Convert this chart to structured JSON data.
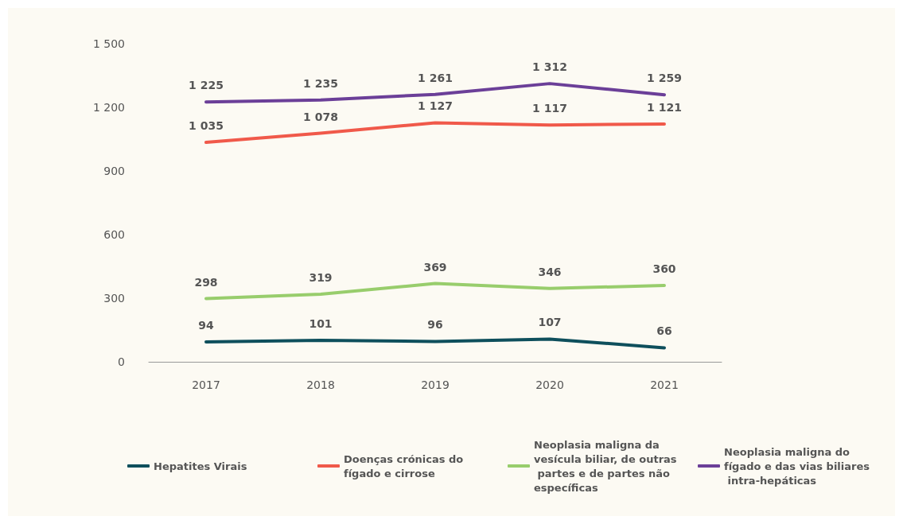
{
  "chart_data": {
    "type": "line",
    "categories": [
      "2017",
      "2018",
      "2019",
      "2020",
      "2021"
    ],
    "ylim": [
      0,
      1500
    ],
    "yticks": [
      0,
      300,
      600,
      900,
      {
        "value": 1200,
        "label": "1 200"
      },
      {
        "value": 1500,
        "label": "1 500"
      }
    ],
    "grid": false,
    "legend": "bottom",
    "marker": "none",
    "line_style": "solid",
    "series": [
      {
        "name": "Hepatites Virais",
        "color": "#0e4f5c",
        "values": [
          94,
          101,
          96,
          107,
          66
        ],
        "value_labels": [
          "94",
          "101",
          "96",
          "107",
          "66"
        ]
      },
      {
        "name": "Doenças crónicas do fígado e cirrose",
        "color": "#f0594a",
        "values": [
          1035,
          1078,
          1127,
          1117,
          1121
        ],
        "value_labels": [
          "1 035",
          "1 078",
          "1 127",
          "1 117",
          "1 121"
        ]
      },
      {
        "name": "Neoplasia maligna da vesícula biliar, de outras partes e de partes não específicas",
        "color": "#98cd6c",
        "values": [
          298,
          319,
          369,
          346,
          360
        ],
        "value_labels": [
          "298",
          "319",
          "369",
          "346",
          "360"
        ]
      },
      {
        "name": "Neoplasia maligna do fígado e das vias biliares intra-hepáticas",
        "color": "#6b3f98",
        "values": [
          1225,
          1235,
          1261,
          1312,
          1259
        ],
        "value_labels": [
          "1 225",
          "1 235",
          "1 261",
          "1 312",
          "1 259"
        ]
      }
    ]
  }
}
